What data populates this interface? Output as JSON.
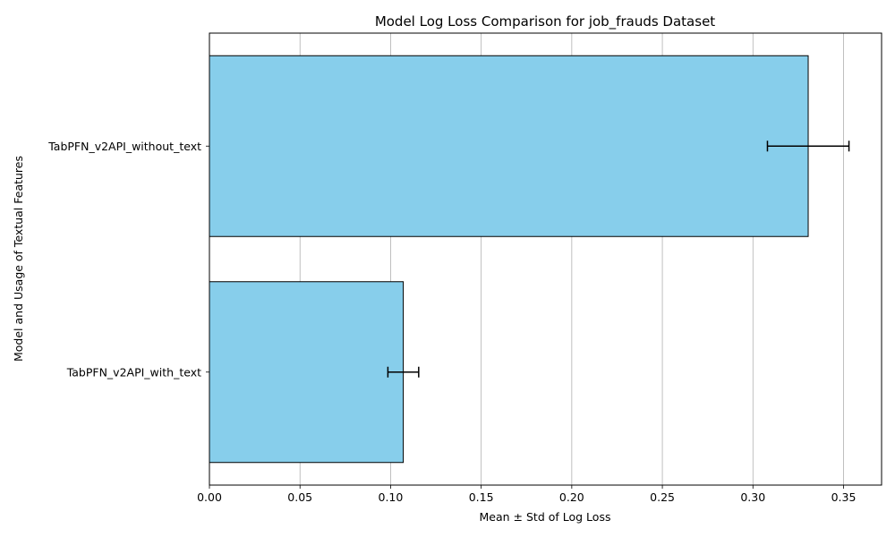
{
  "chart_data": {
    "type": "bar",
    "orientation": "horizontal",
    "title": "Model Log Loss Comparison for job_frauds Dataset",
    "xlabel": "Mean ± Std of Log Loss",
    "ylabel": "Model and Usage of Textual Features",
    "categories": [
      "TabPFN_v2API_without_text",
      "TabPFN_v2API_with_text"
    ],
    "values": [
      0.3305,
      0.107
    ],
    "errors": [
      0.0225,
      0.0085
    ],
    "xlim": [
      0,
      0.371
    ],
    "xticks": [
      "0.00",
      "0.05",
      "0.10",
      "0.15",
      "0.20",
      "0.25",
      "0.30",
      "0.35"
    ],
    "grid": "x",
    "bar_color": "#87CEEB",
    "edge_color": "#000000"
  }
}
